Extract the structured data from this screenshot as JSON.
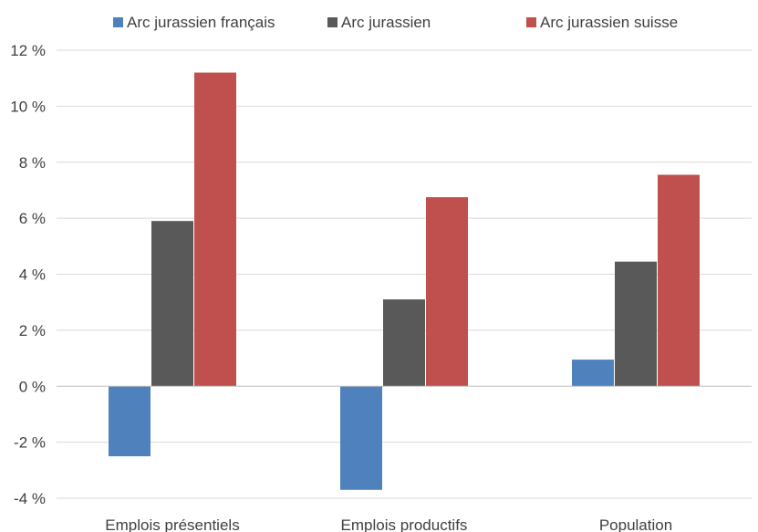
{
  "chart_data": {
    "type": "bar",
    "categories": [
      "Emplois présentiels",
      "Emplois productifs",
      "Population"
    ],
    "series": [
      {
        "name": "Arc jurassien français",
        "color": "#4f81bd",
        "values": [
          -2.5,
          -3.7,
          0.95
        ]
      },
      {
        "name": "Arc jurassien",
        "color": "#595959",
        "values": [
          5.9,
          3.1,
          4.45
        ]
      },
      {
        "name": "Arc jurassien suisse",
        "color": "#c0504d",
        "values": [
          11.2,
          6.75,
          7.55
        ]
      }
    ],
    "ylim": [
      -4,
      12
    ],
    "yticks": [
      {
        "value": -4,
        "label": "-4 %"
      },
      {
        "value": -2,
        "label": "-2 %"
      },
      {
        "value": 0,
        "label": "0 %"
      },
      {
        "value": 2,
        "label": "2 %"
      },
      {
        "value": 4,
        "label": "4 %"
      },
      {
        "value": 6,
        "label": "6 %"
      },
      {
        "value": 8,
        "label": "8 %"
      },
      {
        "value": 10,
        "label": "10 %"
      },
      {
        "value": 12,
        "label": "12 %"
      }
    ],
    "title": "",
    "xlabel": "",
    "ylabel": "",
    "grid": true,
    "legend_position": "top"
  }
}
